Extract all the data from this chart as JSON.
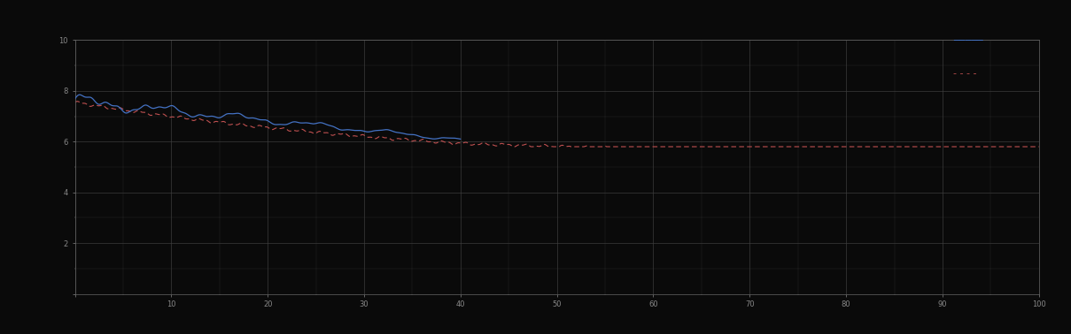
{
  "background_color": "#0a0a0a",
  "plot_bg_color": "#0a0a0a",
  "grid_color": "#404040",
  "line1_color": "#4472c4",
  "line2_color": "#c05050",
  "x_min": 0,
  "x_max": 100,
  "y_min": 0,
  "y_max": 10,
  "tick_color": "#888888",
  "spine_color": "#666666",
  "figsize": [
    12.09,
    3.78
  ],
  "dpi": 100,
  "n_x_major": 10,
  "n_x_minor": 2,
  "n_y_major": 5,
  "n_y_minor": 2
}
